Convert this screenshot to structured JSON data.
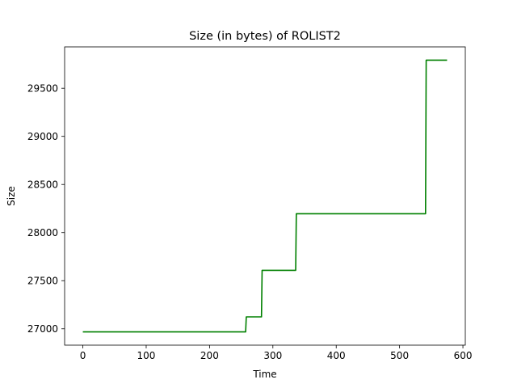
{
  "chart_data": {
    "type": "line",
    "title": "Size (in bytes) of ROLIST2",
    "xlabel": "Time",
    "ylabel": "Size",
    "xlim": [
      -28.75,
      603.75
    ],
    "ylim": [
      26830,
      29930
    ],
    "x_ticks": [
      0,
      100,
      200,
      300,
      400,
      500,
      600
    ],
    "x_tick_labels": [
      "0",
      "100",
      "200",
      "300",
      "400",
      "500",
      "600"
    ],
    "y_ticks": [
      27000,
      27500,
      28000,
      28500,
      29000,
      29500
    ],
    "y_tick_labels": [
      "27000",
      "27500",
      "28000",
      "28500",
      "29000",
      "29500"
    ],
    "grid": false,
    "legend": "none",
    "series": [
      {
        "color": "#008000",
        "x": [
          0,
          257,
          258,
          282,
          283,
          336,
          337,
          541,
          542,
          575
        ],
        "y": [
          26968,
          26968,
          27124,
          27124,
          27608,
          27608,
          28196,
          28196,
          29792,
          29792
        ]
      }
    ]
  }
}
